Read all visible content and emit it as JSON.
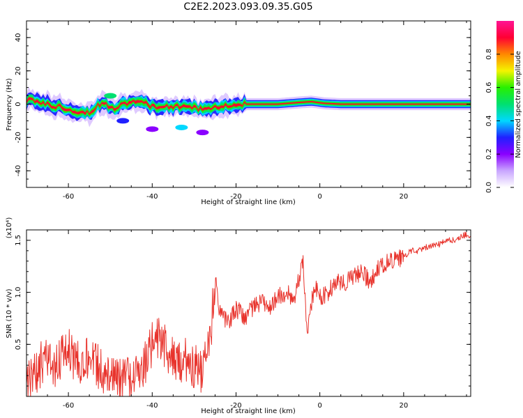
{
  "title": "C2E2.2023.093.09.35.G05",
  "colors": {
    "snr_line": "#e8332c",
    "band_core": "#e0182a",
    "background": "#ffffff"
  },
  "chart_data": [
    {
      "type": "heatmap",
      "xlabel": "Height of straight line (km)",
      "ylabel": "Frequency (Hz)",
      "xlim": [
        -70,
        36
      ],
      "ylim": [
        -50,
        50
      ],
      "x_ticks": [
        "-60",
        "-40",
        "-20",
        "0",
        "20"
      ],
      "y_ticks": [
        "40",
        "20",
        "0",
        "-20",
        "-40"
      ],
      "grid": false,
      "colorbar": {
        "label": "Normalized spectral amplitude",
        "range": [
          0,
          1
        ],
        "ticks": [
          "0.0",
          "0.2",
          "0.4",
          "0.6",
          "0.8"
        ],
        "stops": [
          "#ffffff",
          "#c9a6ff",
          "#8a00ff",
          "#2020ff",
          "#00d8ff",
          "#00e070",
          "#28f000",
          "#f4f400",
          "#ff8800",
          "#ff0033",
          "#ff1493"
        ]
      },
      "band_center": [
        [
          -70,
          2
        ],
        [
          -67,
          1.5
        ],
        [
          -64,
          -1
        ],
        [
          -61,
          -2
        ],
        [
          -58,
          -4
        ],
        [
          -55,
          -5
        ],
        [
          -52,
          1
        ],
        [
          -49,
          -2
        ],
        [
          -46,
          1
        ],
        [
          -43,
          1
        ],
        [
          -40,
          -1
        ],
        [
          -37,
          -2
        ],
        [
          -34,
          -1
        ],
        [
          -31,
          -2
        ],
        [
          -28,
          -3
        ],
        [
          -25,
          -2
        ],
        [
          -22,
          -1
        ],
        [
          -19,
          0
        ],
        [
          -15,
          0
        ],
        [
          -10,
          0
        ],
        [
          -5,
          1
        ],
        [
          -2,
          1.5
        ],
        [
          1,
          0.5
        ],
        [
          5,
          0
        ],
        [
          10,
          0
        ],
        [
          15,
          0
        ],
        [
          20,
          0
        ],
        [
          25,
          0
        ],
        [
          30,
          0
        ],
        [
          36,
          0
        ]
      ],
      "blobs": [
        {
          "x": -40,
          "y": -15,
          "amp": 0.25
        },
        {
          "x": -33,
          "y": -14,
          "amp": 0.4
        },
        {
          "x": -28,
          "y": -17,
          "amp": 0.2
        },
        {
          "x": -50,
          "y": 5,
          "amp": 0.5
        },
        {
          "x": -47,
          "y": -10,
          "amp": 0.3
        }
      ]
    },
    {
      "type": "line",
      "xlabel": "Height of straight line (km)",
      "ylabel": "SNR (10 * v/v)",
      "y_multiplier": "(x10⁴)",
      "xlim": [
        -70,
        36
      ],
      "ylim": [
        0,
        1.6
      ],
      "x_ticks": [
        "-60",
        "-40",
        "-20",
        "0",
        "20"
      ],
      "y_ticks": [
        "1.5",
        "1.0",
        "0.5"
      ],
      "grid": false,
      "series": [
        {
          "color": "#e8332c",
          "x": [
            -70,
            -68,
            -66,
            -64,
            -62,
            -60,
            -58,
            -56,
            -54,
            -52,
            -50,
            -48,
            -46,
            -44,
            -42,
            -40,
            -38,
            -36,
            -34,
            -32,
            -30,
            -28,
            -26,
            -25,
            -24,
            -22,
            -20,
            -18,
            -16,
            -14,
            -12,
            -10,
            -8,
            -6,
            -4,
            -3,
            -2,
            -1,
            0,
            2,
            4,
            6,
            8,
            10,
            12,
            14,
            16,
            18,
            20,
            22,
            24,
            26,
            28,
            30,
            32,
            34,
            36
          ],
          "y": [
            0.1,
            0.2,
            0.35,
            0.28,
            0.35,
            0.45,
            0.3,
            0.4,
            0.35,
            0.22,
            0.2,
            0.15,
            0.18,
            0.22,
            0.28,
            0.5,
            0.55,
            0.4,
            0.3,
            0.35,
            0.3,
            0.2,
            0.6,
            1.15,
            0.85,
            0.7,
            0.85,
            0.75,
            0.85,
            0.9,
            0.85,
            0.95,
            1.0,
            0.95,
            1.3,
            0.6,
            0.9,
            1.05,
            0.95,
            1.0,
            1.1,
            1.1,
            1.15,
            1.2,
            1.1,
            1.25,
            1.3,
            1.3,
            1.35,
            1.4,
            1.4,
            1.45,
            1.45,
            1.5,
            1.5,
            1.55,
            1.55
          ]
        }
      ]
    }
  ]
}
